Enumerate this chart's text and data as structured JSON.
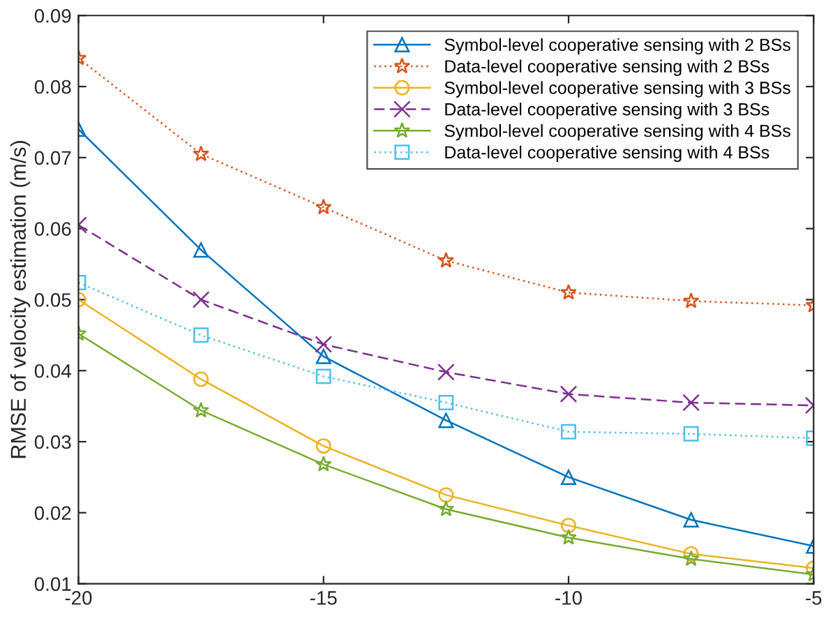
{
  "chart_data": {
    "type": "line",
    "ylabel": "RMSE of velocity estimation (m/s)",
    "x": [
      -20,
      -17.5,
      -15,
      -12.5,
      -10,
      -7.5,
      -5
    ],
    "series": [
      {
        "name": "Symbol-level cooperative sensing with 2 BSs",
        "color": "#0072bd",
        "marker": "triangle",
        "line_style": "solid",
        "values": [
          0.074,
          0.057,
          0.042,
          0.033,
          0.025,
          0.019,
          0.0153
        ]
      },
      {
        "name": "Data-level cooperative sensing with 2 BSs",
        "color": "#d95319",
        "marker": "star",
        "line_style": "dotted",
        "values": [
          0.084,
          0.0705,
          0.063,
          0.0555,
          0.051,
          0.0498,
          0.0492
        ]
      },
      {
        "name": "Symbol-level cooperative sensing with 3 BSs",
        "color": "#edb120",
        "marker": "circle",
        "line_style": "solid",
        "values": [
          0.05,
          0.0388,
          0.0294,
          0.0225,
          0.0182,
          0.0142,
          0.0122
        ]
      },
      {
        "name": "Data-level cooperative sensing with 3 BSs",
        "color": "#7e2f8e",
        "marker": "cross",
        "line_style": "dashed",
        "values": [
          0.0605,
          0.05,
          0.0437,
          0.0398,
          0.0367,
          0.0355,
          0.0351
        ]
      },
      {
        "name": "Symbol-level cooperative sensing with 4 BSs",
        "color": "#77ac30",
        "marker": "star",
        "line_style": "solid",
        "values": [
          0.0452,
          0.0344,
          0.0268,
          0.0205,
          0.0165,
          0.0135,
          0.0113
        ]
      },
      {
        "name": "Data-level cooperative sensing with 4 BSs",
        "color": "#4dbeee",
        "marker": "square",
        "line_style": "dotted",
        "values": [
          0.0524,
          0.045,
          0.0392,
          0.0355,
          0.0314,
          0.0311,
          0.0305
        ]
      }
    ],
    "xlim": [
      -20,
      -5
    ],
    "xticks": [
      -20,
      -15,
      -10,
      -5
    ],
    "ylim": [
      0.01,
      0.09
    ],
    "yticks": [
      0.01,
      0.02,
      0.03,
      0.04,
      0.05,
      0.06,
      0.07,
      0.08,
      0.09
    ],
    "grid": false,
    "legend": "top right"
  }
}
